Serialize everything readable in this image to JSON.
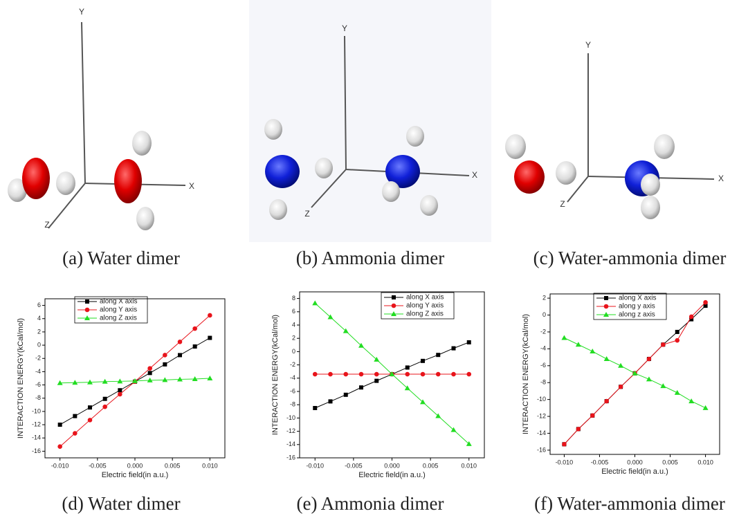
{
  "molecules": [
    {
      "axis_labels": {
        "y": "Y",
        "x": "X",
        "z": "Z"
      },
      "caption": "(a) Water dimer"
    },
    {
      "axis_labels": {
        "y": "Y",
        "x": "X",
        "z": "Z"
      },
      "caption": "(b) Ammonia dimer"
    },
    {
      "axis_labels": {
        "y": "Y",
        "x": "X",
        "z": "Z"
      },
      "caption": "(c) Water-ammonia dimer"
    }
  ],
  "chart_data": [
    {
      "type": "line",
      "caption": "(d) Water dimer",
      "x_label": "Electric field(in a.u.)",
      "y_label": "INTERACTION ENERGY(kCal/mol)",
      "x": [
        -0.01,
        -0.008,
        -0.006,
        -0.004,
        -0.002,
        0.0,
        0.002,
        0.004,
        0.006,
        0.008,
        0.01
      ],
      "xlim": [
        -0.012,
        0.012
      ],
      "xticks": [
        {
          "value": -0.01,
          "label": "-0.010"
        },
        {
          "value": -0.005,
          "label": "-0.005"
        },
        {
          "value": 0,
          "label": "0.000"
        },
        {
          "value": 0.005,
          "label": "0.005"
        },
        {
          "value": 0.01,
          "label": "0.010"
        }
      ],
      "ylim": [
        -17,
        7
      ],
      "yticks": [
        -16,
        -14,
        -12,
        -10,
        -8,
        -6,
        -4,
        -2,
        0,
        2,
        4,
        6
      ],
      "legend": "top",
      "series": [
        {
          "name": "along X axis",
          "color": "#000000",
          "marker": "square",
          "values": [
            -12,
            -10.7,
            -9.4,
            -8.1,
            -6.8,
            -5.5,
            -4.2,
            -2.9,
            -1.5,
            -0.2,
            1.1
          ]
        },
        {
          "name": "along Y axis",
          "color": "#e8141b",
          "marker": "circle",
          "values": [
            -15.3,
            -13.3,
            -11.3,
            -9.3,
            -7.4,
            -5.5,
            -3.5,
            -1.5,
            0.5,
            2.5,
            4.5
          ]
        },
        {
          "name": "along Z axis",
          "color": "#22dd22",
          "marker": "triangle",
          "values": [
            -5.7,
            -5.65,
            -5.6,
            -5.5,
            -5.45,
            -5.4,
            -5.3,
            -5.25,
            -5.15,
            -5.1,
            -5.0
          ]
        }
      ]
    },
    {
      "type": "line",
      "caption": "(e) Ammonia dimer",
      "x_label": "Electric field(in a.u.)",
      "y_label": "INTERACTION ENERGY(kCal/mol)",
      "x": [
        -0.01,
        -0.008,
        -0.006,
        -0.004,
        -0.002,
        0.0,
        0.002,
        0.004,
        0.006,
        0.008,
        0.01
      ],
      "xlim": [
        -0.012,
        0.012
      ],
      "xticks": [
        {
          "value": -0.01,
          "label": "-0.010"
        },
        {
          "value": -0.005,
          "label": "-0.005"
        },
        {
          "value": 0,
          "label": "0.000"
        },
        {
          "value": 0.005,
          "label": "0.005"
        },
        {
          "value": 0.01,
          "label": "0.010"
        }
      ],
      "ylim": [
        -16,
        9
      ],
      "yticks": [
        -16,
        -14,
        -12,
        -10,
        -8,
        -6,
        -4,
        -2,
        0,
        2,
        4,
        6,
        8
      ],
      "legend": "top-right",
      "series": [
        {
          "name": "along X axis",
          "color": "#000000",
          "marker": "square",
          "values": [
            -8.5,
            -7.5,
            -6.5,
            -5.4,
            -4.4,
            -3.4,
            -2.4,
            -1.4,
            -0.5,
            0.5,
            1.4
          ]
        },
        {
          "name": "along Y axis",
          "color": "#e8141b",
          "marker": "circle",
          "values": [
            -3.4,
            -3.4,
            -3.4,
            -3.4,
            -3.4,
            -3.4,
            -3.4,
            -3.4,
            -3.4,
            -3.4,
            -3.4
          ]
        },
        {
          "name": "along Z axis",
          "color": "#22dd22",
          "marker": "triangle",
          "values": [
            7.3,
            5.2,
            3.1,
            0.9,
            -1.2,
            -3.4,
            -5.5,
            -7.6,
            -9.7,
            -11.8,
            -13.9
          ]
        }
      ]
    },
    {
      "type": "line",
      "caption": "(f) Water-ammonia dimer",
      "x_label": "Electric field(in a.u.)",
      "y_label": "INTERACTION ENERGY(kCal/mol)",
      "x": [
        -0.01,
        -0.008,
        -0.006,
        -0.004,
        -0.002,
        0.0,
        0.002,
        0.004,
        0.006,
        0.008,
        0.01
      ],
      "xlim": [
        -0.012,
        0.012
      ],
      "xticks": [
        {
          "value": -0.01,
          "label": "-0.010"
        },
        {
          "value": -0.005,
          "label": "-0.005"
        },
        {
          "value": 0,
          "label": "0.000"
        },
        {
          "value": 0.005,
          "label": "0.005"
        },
        {
          "value": 0.01,
          "label": "0.010"
        }
      ],
      "ylim": [
        -16.5,
        2.5
      ],
      "yticks": [
        -16,
        -14,
        -12,
        -10,
        -8,
        -6,
        -4,
        -2,
        0,
        2
      ],
      "legend": "top",
      "series": [
        {
          "name": "along X axis",
          "color": "#000000",
          "marker": "square",
          "values": [
            -15.3,
            -13.5,
            -11.9,
            -10.2,
            -8.5,
            -6.9,
            -5.2,
            -3.5,
            -2.0,
            -0.5,
            1.1
          ]
        },
        {
          "name": "along y axis",
          "color": "#e8141b",
          "marker": "circle",
          "values": [
            -15.3,
            -13.5,
            -11.9,
            -10.2,
            -8.5,
            -6.9,
            -5.2,
            -3.5,
            -3.0,
            -0.2,
            1.5
          ]
        },
        {
          "name": "along z axis",
          "color": "#22dd22",
          "marker": "triangle",
          "values": [
            -2.7,
            -3.5,
            -4.3,
            -5.2,
            -6.0,
            -6.9,
            -7.6,
            -8.4,
            -9.2,
            -10.2,
            -11.0
          ]
        }
      ]
    }
  ]
}
